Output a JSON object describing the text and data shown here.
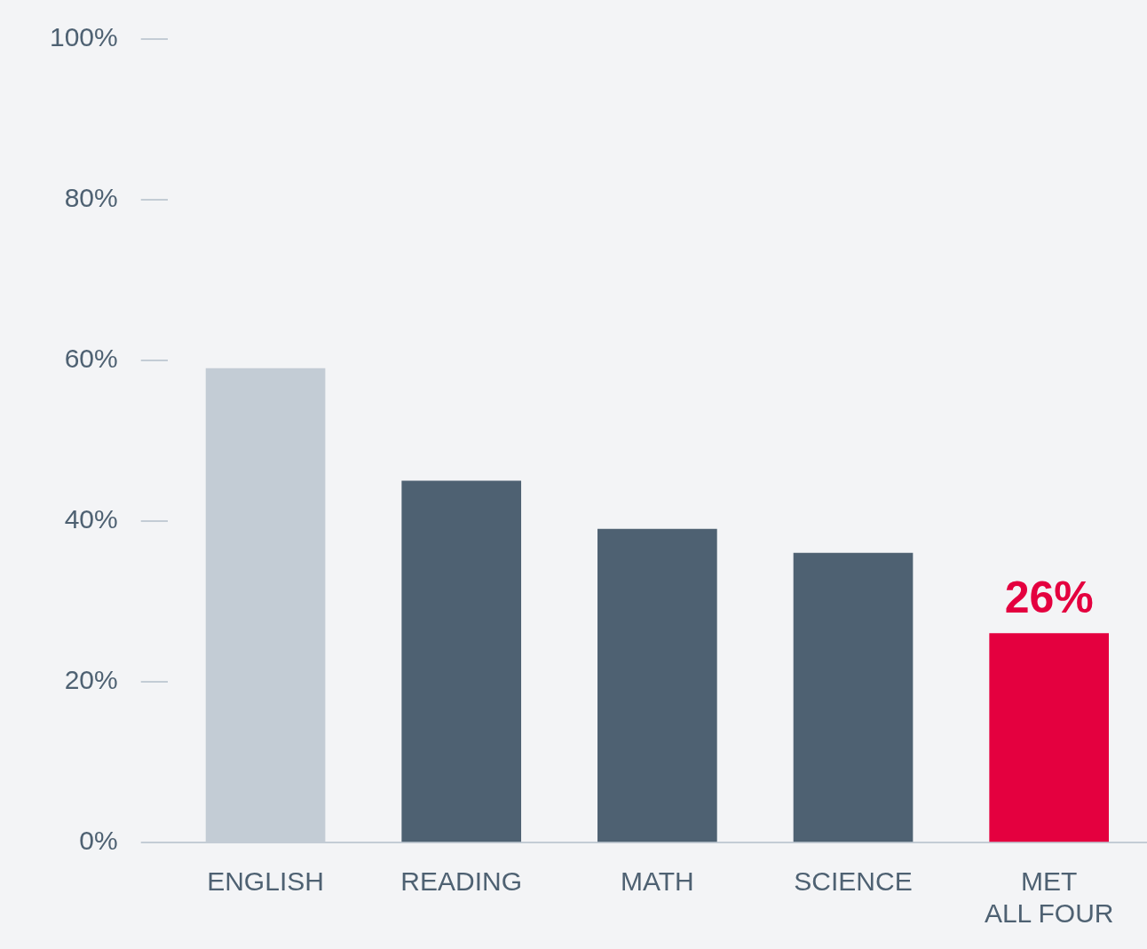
{
  "chart_data": {
    "type": "bar",
    "categories": [
      "ENGLISH",
      "READING",
      "MATH",
      "SCIENCE",
      "MET\nALL FOUR"
    ],
    "values": [
      59,
      45,
      39,
      36,
      26
    ],
    "colors": [
      "#c3ccd5",
      "#4e6172",
      "#4e6172",
      "#4e6172",
      "#e4003f"
    ],
    "value_labels": [
      null,
      null,
      null,
      null,
      "26%"
    ],
    "ylim": [
      0,
      100
    ],
    "yticks": [
      {
        "value": 0,
        "label": "0%"
      },
      {
        "value": 20,
        "label": "20%"
      },
      {
        "value": 40,
        "label": "40%"
      },
      {
        "value": 60,
        "label": "60%"
      },
      {
        "value": 80,
        "label": "80%"
      },
      {
        "value": 100,
        "label": "100%"
      }
    ]
  }
}
